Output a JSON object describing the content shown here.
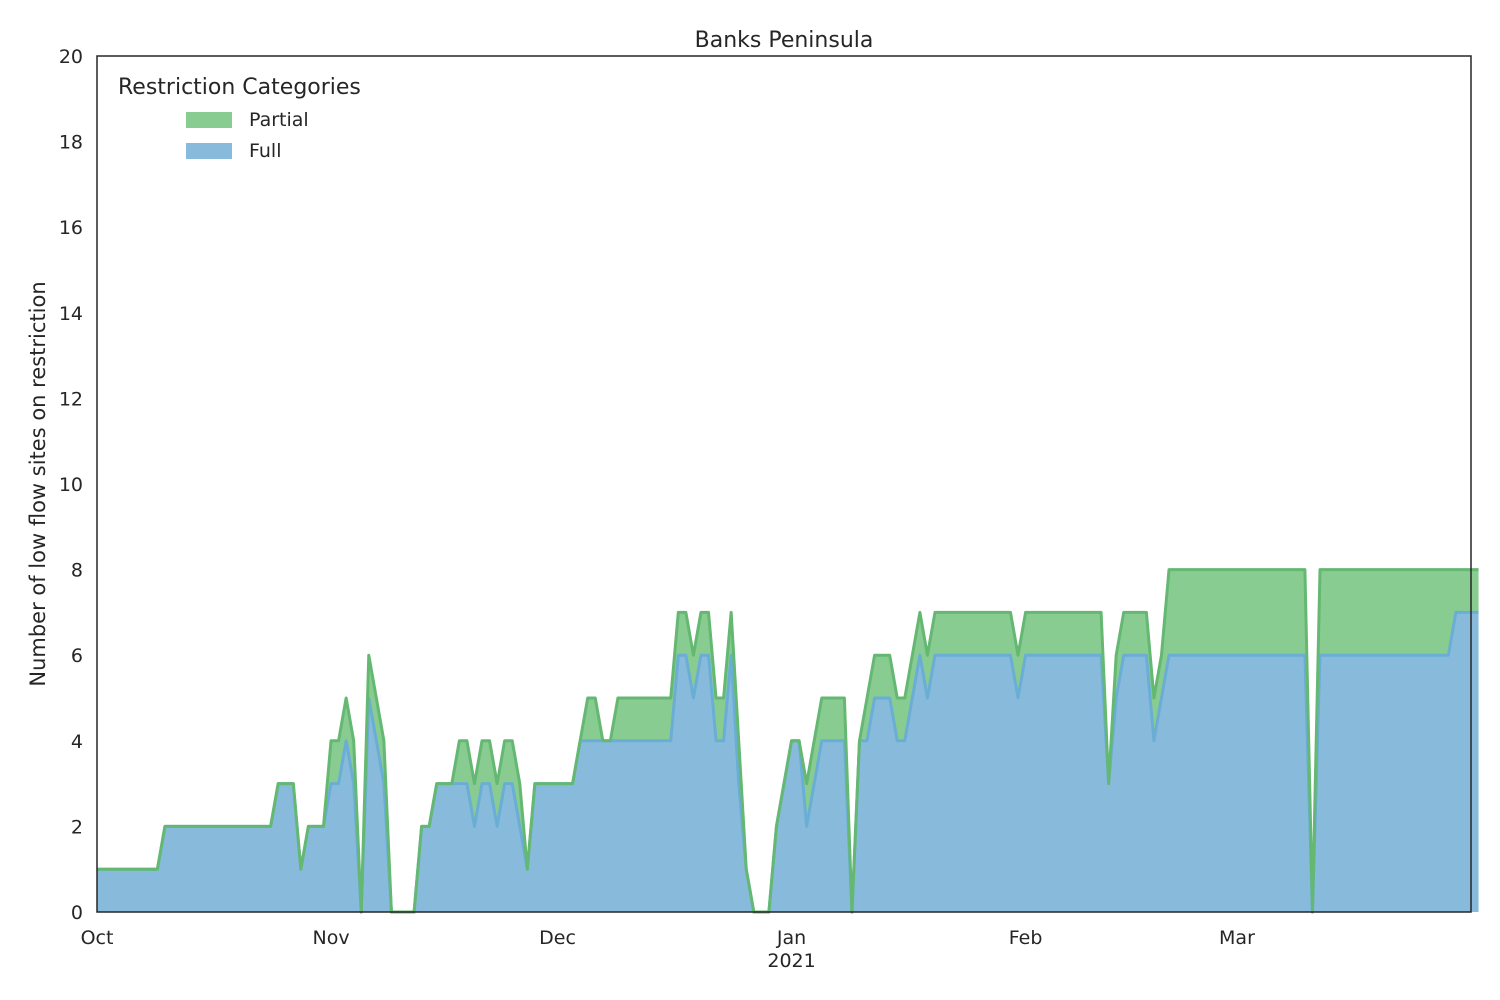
{
  "chart_data": {
    "type": "area",
    "stacked": true,
    "title": "Banks Peninsula",
    "xlabel": "",
    "ylabel": "Number of low flow sites on restriction",
    "ylim": [
      0,
      20
    ],
    "yticks": [
      0,
      2,
      4,
      6,
      8,
      10,
      12,
      14,
      16,
      18,
      20
    ],
    "x_start": "2020-10-01",
    "x_end": "2021-03-31",
    "xticks": [
      {
        "day": 0,
        "label": "Oct",
        "sublabel": ""
      },
      {
        "day": 31,
        "label": "Nov",
        "sublabel": ""
      },
      {
        "day": 61,
        "label": "Dec",
        "sublabel": ""
      },
      {
        "day": 92,
        "label": "Jan",
        "sublabel": "2021"
      },
      {
        "day": 123,
        "label": "Feb",
        "sublabel": ""
      },
      {
        "day": 151,
        "label": "Mar",
        "sublabel": ""
      }
    ],
    "legend": {
      "title": "Restriction Categories",
      "position": "top-left",
      "entries": [
        "Partial",
        "Full"
      ]
    },
    "colors": {
      "full_fill": "#88bbdb",
      "full_line": "#6aaed6",
      "partial_fill": "#88cc92",
      "partial_line": "#64b872",
      "axis": "#262626"
    },
    "series": [
      {
        "name": "Full",
        "points": [
          [
            0,
            1
          ],
          [
            8,
            1
          ],
          [
            9,
            2
          ],
          [
            23,
            2
          ],
          [
            24,
            3
          ],
          [
            26,
            3
          ],
          [
            27,
            1
          ],
          [
            28,
            2
          ],
          [
            30,
            2
          ],
          [
            31,
            3
          ],
          [
            32,
            3
          ],
          [
            33,
            4
          ],
          [
            34,
            3
          ],
          [
            35,
            0
          ],
          [
            36,
            5
          ],
          [
            38,
            3
          ],
          [
            39,
            0
          ],
          [
            42,
            0
          ],
          [
            43,
            2
          ],
          [
            44,
            2
          ],
          [
            45,
            3
          ],
          [
            49,
            3
          ],
          [
            50,
            2
          ],
          [
            51,
            3
          ],
          [
            52,
            3
          ],
          [
            53,
            2
          ],
          [
            54,
            3
          ],
          [
            55,
            3
          ],
          [
            56,
            2
          ],
          [
            57,
            1
          ],
          [
            58,
            3
          ],
          [
            63,
            3
          ],
          [
            64,
            4
          ],
          [
            76,
            4
          ],
          [
            77,
            6
          ],
          [
            78,
            6
          ],
          [
            79,
            5
          ],
          [
            80,
            6
          ],
          [
            81,
            6
          ],
          [
            82,
            4
          ],
          [
            83,
            4
          ],
          [
            84,
            6
          ],
          [
            85,
            3
          ],
          [
            86,
            1
          ],
          [
            87,
            0
          ],
          [
            89,
            0
          ],
          [
            90,
            2
          ],
          [
            92,
            4
          ],
          [
            93,
            4
          ],
          [
            94,
            2
          ],
          [
            96,
            4
          ],
          [
            99,
            4
          ],
          [
            100,
            0
          ],
          [
            101,
            4
          ],
          [
            102,
            4
          ],
          [
            103,
            5
          ],
          [
            105,
            5
          ],
          [
            106,
            4
          ],
          [
            107,
            4
          ],
          [
            109,
            6
          ],
          [
            110,
            5
          ],
          [
            111,
            6
          ],
          [
            121,
            6
          ],
          [
            122,
            5
          ],
          [
            123,
            6
          ],
          [
            133,
            6
          ],
          [
            134,
            3
          ],
          [
            135,
            5
          ],
          [
            136,
            6
          ],
          [
            139,
            6
          ],
          [
            140,
            4
          ],
          [
            141,
            5
          ],
          [
            142,
            6
          ],
          [
            160,
            6
          ],
          [
            161,
            0
          ],
          [
            162,
            6
          ],
          [
            179,
            6
          ],
          [
            180,
            7
          ],
          [
            183,
            7
          ]
        ]
      },
      {
        "name": "Partial",
        "points": [
          [
            0,
            0
          ],
          [
            8,
            0
          ],
          [
            9,
            0
          ],
          [
            23,
            0
          ],
          [
            24,
            0
          ],
          [
            26,
            0
          ],
          [
            27,
            0
          ],
          [
            28,
            0
          ],
          [
            30,
            0
          ],
          [
            31,
            1
          ],
          [
            32,
            1
          ],
          [
            33,
            1
          ],
          [
            34,
            1
          ],
          [
            35,
            0
          ],
          [
            36,
            1
          ],
          [
            38,
            1
          ],
          [
            39,
            0
          ],
          [
            42,
            0
          ],
          [
            43,
            0
          ],
          [
            44,
            0
          ],
          [
            45,
            0
          ],
          [
            47,
            0
          ],
          [
            48,
            1
          ],
          [
            49,
            1
          ],
          [
            50,
            1
          ],
          [
            51,
            1
          ],
          [
            52,
            1
          ],
          [
            53,
            1
          ],
          [
            54,
            1
          ],
          [
            55,
            1
          ],
          [
            56,
            1
          ],
          [
            57,
            0
          ],
          [
            58,
            0
          ],
          [
            63,
            0
          ],
          [
            64,
            0
          ],
          [
            65,
            1
          ],
          [
            66,
            1
          ],
          [
            67,
            0
          ],
          [
            68,
            0
          ],
          [
            69,
            1
          ],
          [
            76,
            1
          ],
          [
            77,
            1
          ],
          [
            78,
            1
          ],
          [
            79,
            1
          ],
          [
            80,
            1
          ],
          [
            81,
            1
          ],
          [
            82,
            1
          ],
          [
            83,
            1
          ],
          [
            84,
            1
          ],
          [
            85,
            1
          ],
          [
            86,
            0
          ],
          [
            87,
            0
          ],
          [
            89,
            0
          ],
          [
            90,
            0
          ],
          [
            92,
            0
          ],
          [
            93,
            0
          ],
          [
            94,
            1
          ],
          [
            95,
            1
          ],
          [
            96,
            1
          ],
          [
            99,
            1
          ],
          [
            100,
            0
          ],
          [
            101,
            0
          ],
          [
            102,
            1
          ],
          [
            103,
            1
          ],
          [
            105,
            1
          ],
          [
            106,
            1
          ],
          [
            107,
            1
          ],
          [
            109,
            1
          ],
          [
            110,
            1
          ],
          [
            111,
            1
          ],
          [
            121,
            1
          ],
          [
            122,
            1
          ],
          [
            123,
            1
          ],
          [
            133,
            1
          ],
          [
            134,
            0
          ],
          [
            135,
            1
          ],
          [
            136,
            1
          ],
          [
            139,
            1
          ],
          [
            140,
            1
          ],
          [
            141,
            1
          ],
          [
            142,
            2
          ],
          [
            160,
            2
          ],
          [
            161,
            0
          ],
          [
            162,
            2
          ],
          [
            179,
            2
          ],
          [
            180,
            1
          ],
          [
            183,
            1
          ]
        ]
      }
    ]
  }
}
